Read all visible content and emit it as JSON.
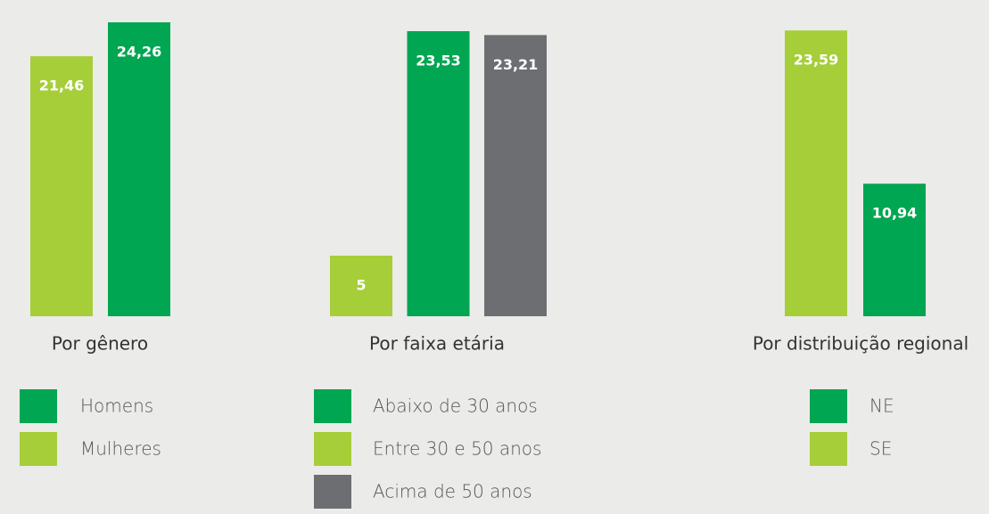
{
  "chart_data": [
    {
      "type": "bar",
      "xlabel": "Por gênero",
      "series": [
        {
          "name": "Homens",
          "color": "#00a651",
          "values": [
            24.26
          ],
          "value_labels": [
            "24,26"
          ]
        },
        {
          "name": "Mulheres",
          "color": "#a6ce39",
          "values": [
            21.46
          ],
          "value_labels": [
            "21,46"
          ]
        }
      ]
    },
    {
      "type": "bar",
      "xlabel": "Por faixa etária",
      "series": [
        {
          "name": "Abaixo de 30 anos",
          "color": "#00a651",
          "values": [
            23.53
          ],
          "value_labels": [
            "23,53"
          ]
        },
        {
          "name": "Entre 30 e 50 anos",
          "color": "#a6ce39",
          "values": [
            5
          ],
          "value_labels": [
            "5"
          ]
        },
        {
          "name": "Acima de 50 anos",
          "color": "#6d6e71",
          "values": [
            23.21
          ],
          "value_labels": [
            "23,21"
          ]
        }
      ]
    },
    {
      "type": "bar",
      "xlabel": "Por distribuição regional",
      "series": [
        {
          "name": "NE",
          "color": "#00a651",
          "values": [
            10.94
          ],
          "value_labels": [
            "10,94"
          ]
        },
        {
          "name": "SE",
          "color": "#a6ce39",
          "values": [
            23.59
          ],
          "value_labels": [
            "23,59"
          ]
        }
      ]
    }
  ]
}
